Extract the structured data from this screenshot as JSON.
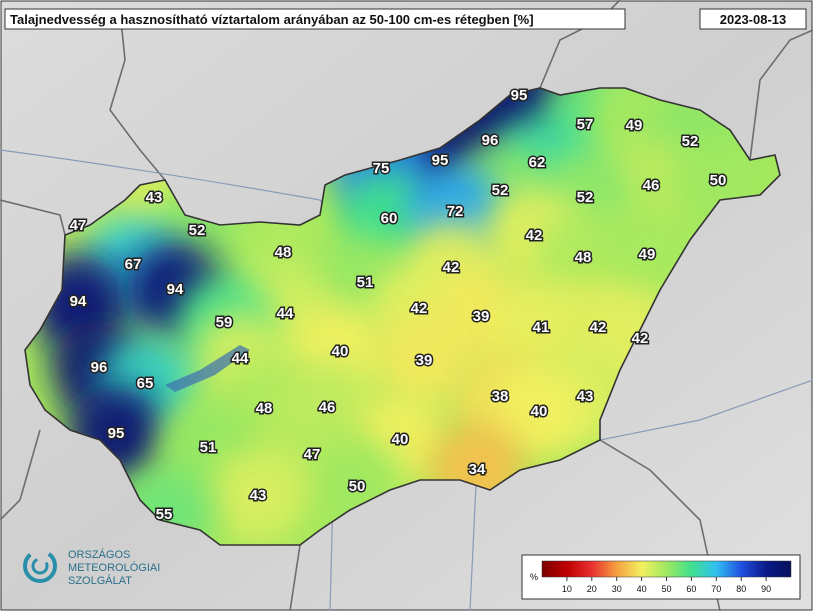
{
  "header": {
    "title": "Talajnedvesség a hasznosítható víztartalom arányában az 50-100 cm-es rétegben [%]",
    "date": "2023-08-13"
  },
  "map": {
    "values": [
      95,
      57,
      49,
      52,
      96,
      95,
      75,
      62,
      46,
      50,
      43,
      52,
      52,
      47,
      60,
      72,
      52,
      42,
      48,
      48,
      49,
      67,
      42,
      51,
      94,
      94,
      42,
      39,
      41,
      42,
      44,
      59,
      42,
      40,
      44,
      39,
      96,
      65,
      38,
      43,
      40,
      48,
      46,
      95,
      51,
      40,
      47,
      34,
      50,
      43,
      55
    ]
  },
  "legend": {
    "unit": "%",
    "lim": [
      0,
      100
    ],
    "ticks": [
      10,
      20,
      30,
      40,
      50,
      60,
      70,
      80,
      90
    ]
  },
  "logo": {
    "lines": [
      "ORSZÁGOS",
      "METEOROLÓGIAI",
      "SZOLGÁLAT"
    ]
  }
}
